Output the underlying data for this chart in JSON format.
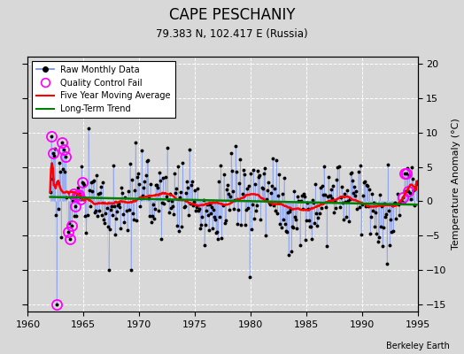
{
  "title": "CAPE PESCHANIY",
  "subtitle": "79.383 N, 102.417 E (Russia)",
  "ylabel_right": "Temperature Anomaly (°C)",
  "watermark": "Berkeley Earth",
  "xlim": [
    1960,
    1995
  ],
  "ylim": [
    -16,
    21
  ],
  "yticks": [
    -15,
    -10,
    -5,
    0,
    5,
    10,
    15,
    20
  ],
  "xticks": [
    1960,
    1965,
    1970,
    1975,
    1980,
    1985,
    1990,
    1995
  ],
  "bg_color": "#d8d8d8",
  "plot_bg_color": "#d8d8d8",
  "raw_line_color": "#6688ff",
  "raw_marker_color": "black",
  "qc_fail_color": "magenta",
  "moving_avg_color": "red",
  "trend_color": "green",
  "start_year": 1962,
  "end_year": 1994
}
